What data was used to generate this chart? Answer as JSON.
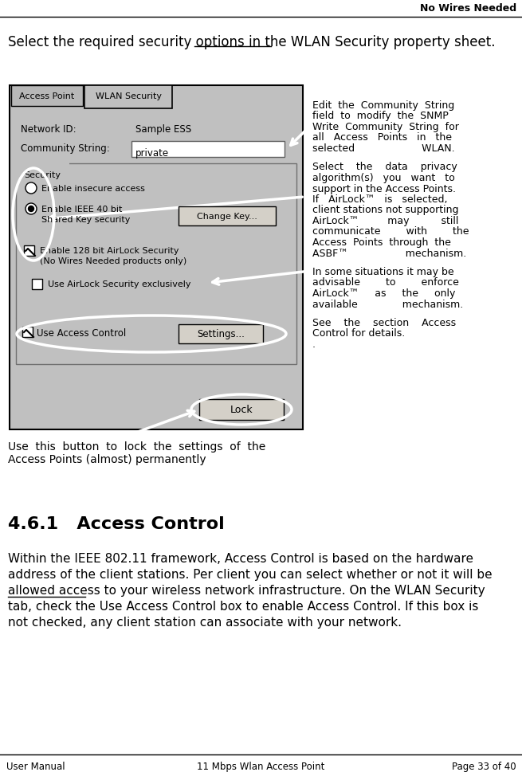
{
  "title_right": "No Wires Needed",
  "intro_text": "Select the required security options in the WLAN Security property sheet.",
  "section_title": "4.6.1   Access Control",
  "section_body": "Within the IEEE 802.11 framework, Access Control is based on the hardware\naddress of the client stations. Per client you can select whether or not it will be\nallowed access to your wireless network infrastructure. On the WLAN Security\ntab, check the Use Access Control box to enable Access Control. If this box is\nnot checked, any client station can associate with your network.",
  "footer_left": "User Manual",
  "footer_center": "11 Mbps Wlan Access Point",
  "footer_right": "Page 33 of 40",
  "rc_text1_lines": [
    "Edit  the  Community  String",
    "field  to  modify  the  SNMP",
    "Write  Community  String  for",
    "all   Access   Points   in   the",
    "selected                     WLAN."
  ],
  "rc_text2_lines": [
    "Select    the    data    privacy",
    "algorithm(s)   you   want   to",
    "support in the Access Points.",
    "If   AirLock™   is   selected,",
    "client stations not supporting",
    "AirLock™         may          still",
    "communicate        with        the",
    "Access  Points  through  the",
    "ASBF™                  mechanism."
  ],
  "rc_text3_lines": [
    "In some situations it may be",
    "advisable        to        enforce",
    "AirLock™     as     the     only",
    "available              mechanism."
  ],
  "rc_text4_lines": [
    "See    the    section    Access",
    "Control for details.",
    "."
  ],
  "cap_line1": "Use  this  button  to  lock  the  settings  of  the",
  "cap_line2": "Access Points (almost) permanently",
  "bg_color": "#ffffff",
  "dialog_bg": "#c0c0c0"
}
